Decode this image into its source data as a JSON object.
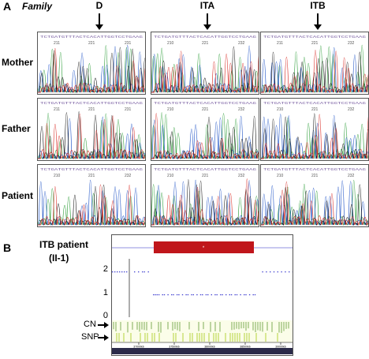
{
  "panel_a": {
    "letter": "A",
    "family_label": "Family",
    "columns": [
      "D",
      "ITA",
      "ITB"
    ],
    "rows": [
      "Mother",
      "Father",
      "Patient"
    ],
    "traces": [
      [
        {
          "seq": "TCTGATGTTTACTCACATTGGTCCTGAAG",
          "nums": [
            "211",
            "221",
            "231"
          ]
        },
        {
          "seq": "TCTGATGTTTACTCACATTGGTCCTGAAG",
          "nums": [
            "210",
            "221",
            "232"
          ]
        },
        {
          "seq": "TCTGATGTTTACTCACATTGGTCCTGAAG",
          "nums": [
            "211",
            "221",
            "232"
          ]
        }
      ],
      [
        {
          "seq": "TCTGATGTTTACTCACATTGGTCCTGAAG",
          "nums": [
            "211",
            "221",
            "231"
          ]
        },
        {
          "seq": "TCTGATGTTTACTCACATTGGTCCTGAAG",
          "nums": [
            "210",
            "221",
            "232"
          ]
        },
        {
          "seq": "TCTGATGTTTACTCACATTGGTCCTGAAG",
          "nums": [
            "210",
            "221",
            "232"
          ]
        }
      ],
      [
        {
          "seq": "TCTGATGTTTACTCACATTGGTCCTGAAG",
          "nums": [
            "210",
            "221",
            "232"
          ]
        },
        {
          "seq": "TCTGATGTTTACTCACATTGGTCCTGAAG",
          "nums": [
            "210",
            "221",
            "232"
          ]
        },
        {
          "seq": "TCTGATGTTTACTCACATTGGTCCTGAAG",
          "nums": [
            "210",
            "221",
            "232"
          ]
        }
      ]
    ],
    "trace_colors": [
      "#2e9e3a",
      "#2155c7",
      "#1a1a1a",
      "#d9302a"
    ]
  },
  "panel_b": {
    "letter": "B",
    "title": "ITB  patient",
    "subtitle": "(II-1)",
    "y_ticks": [
      "2",
      "1",
      "0"
    ],
    "track_labels": [
      "CN",
      "SNP"
    ],
    "highlight_color": "#c0161b",
    "axis_ticks": [
      "37000kb",
      "37500kb",
      "38000kb",
      "38500kb",
      "39000kb"
    ]
  }
}
